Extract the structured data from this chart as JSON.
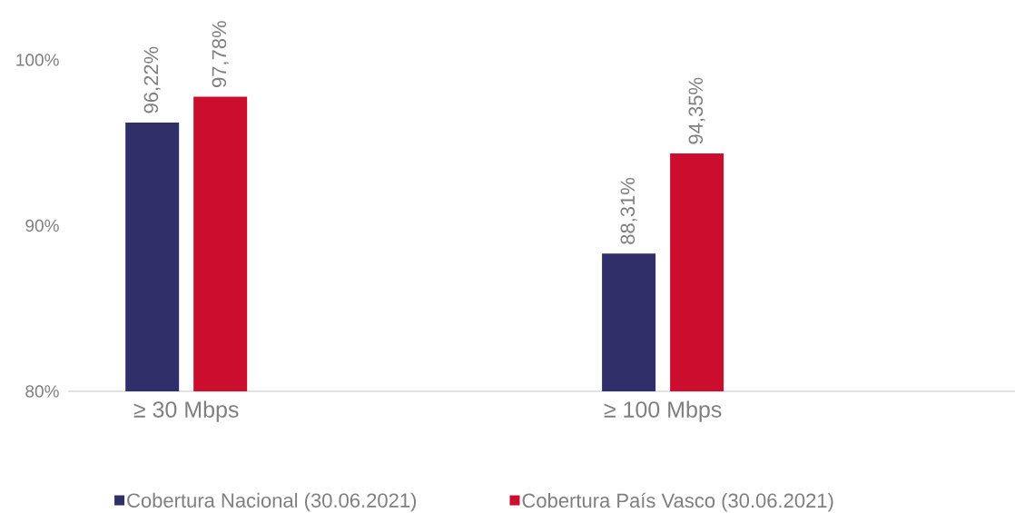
{
  "chart_data": {
    "type": "bar",
    "categories": [
      "≥ 30 Mbps",
      "≥ 100 Mbps"
    ],
    "series": [
      {
        "name": "Cobertura Nacional (30.06.2021)",
        "color": "#302f6a",
        "values": [
          96.22,
          88.31
        ],
        "value_labels": [
          "96,22%",
          "88,31%"
        ]
      },
      {
        "name": "Cobertura País Vasco (30.06.2021)",
        "color": "#cc0e2e",
        "values": [
          97.78,
          94.35
        ],
        "value_labels": [
          "97,78%",
          "94,35%"
        ]
      }
    ],
    "ylim": [
      80,
      100
    ],
    "yticks": [
      {
        "value": 80,
        "label": "80%"
      },
      {
        "value": 90,
        "label": "90%"
      },
      {
        "value": 100,
        "label": "100%"
      }
    ],
    "legend": "bottom"
  }
}
